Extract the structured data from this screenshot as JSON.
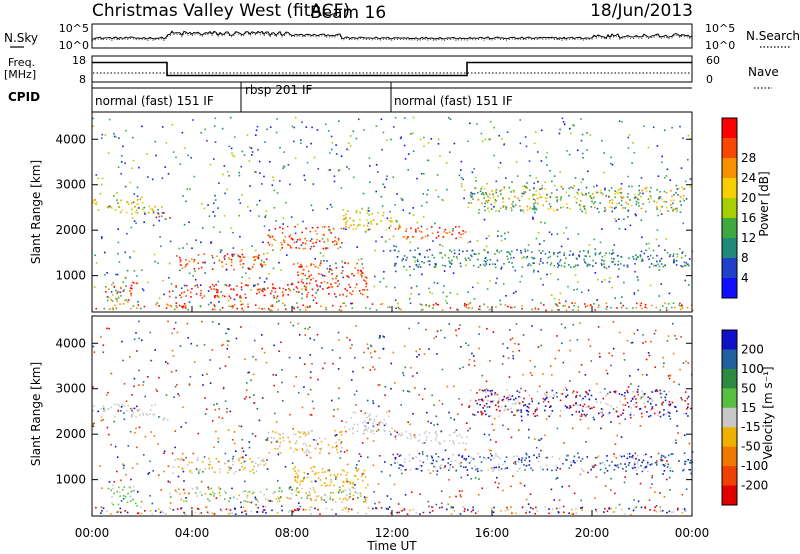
{
  "header": {
    "title": "Christmas Valley West (fitACF)",
    "beam": "Beam 16",
    "date": "18/Jun/2013"
  },
  "chart_data": [
    {
      "type": "line",
      "name": "noise-panel",
      "left_label": "N.Sky",
      "right_label": "N.Search",
      "left_ticks": [
        "10^5",
        "10^0"
      ],
      "right_ticks": [
        "10^5",
        "10^0"
      ],
      "series": [
        {
          "name": "N.Sky",
          "style": "solid"
        },
        {
          "name": "N.Search",
          "style": "dotted"
        }
      ]
    },
    {
      "type": "line",
      "name": "frequency-panel",
      "left_label_line1": "Freq.",
      "left_label_line2": "[MHz]",
      "right_label": "Nave",
      "left_ticks": [
        "18",
        "8"
      ],
      "right_ticks": [
        "60",
        "0"
      ],
      "freq_steps_hours": [
        [
          0,
          3,
          15.5
        ],
        [
          3,
          15,
          10.5
        ],
        [
          15,
          24,
          15.5
        ]
      ],
      "ylim": [
        8,
        18
      ]
    },
    {
      "type": "table",
      "name": "cpid-panel",
      "label": "CPID",
      "segments": [
        {
          "label": "normal (fast) 151 IF",
          "start": 0,
          "end": 6
        },
        {
          "label": "rbsp 201 IF",
          "start": 6,
          "end": 12
        },
        {
          "label": "normal (fast) 151 IF",
          "start": 12,
          "end": 24
        }
      ]
    },
    {
      "type": "heatmap",
      "name": "power",
      "ylabel": "Slant Range [km]",
      "yticks": [
        1000,
        2000,
        3000,
        4000
      ],
      "ylim": [
        200,
        4600
      ],
      "colorbar_label": "Power [dB]",
      "colorbar_ticks": [
        4,
        8,
        12,
        16,
        20,
        24,
        28
      ],
      "colorbar_colors": [
        "#1010ff",
        "#2040c8",
        "#208a7a",
        "#40a840",
        "#a8d000",
        "#f8d000",
        "#f89000",
        "#f84800",
        "#ff0000"
      ],
      "clim": [
        0,
        32
      ]
    },
    {
      "type": "heatmap",
      "name": "velocity",
      "ylabel": "Slant Range [km]",
      "yticks": [
        1000,
        2000,
        3000,
        4000
      ],
      "ylim": [
        200,
        4600
      ],
      "colorbar_label": "Velocity [m s⁻¹]",
      "colorbar_ticks": [
        "200",
        "100",
        "50",
        "15",
        "-15",
        "-50",
        "-100",
        "-200"
      ],
      "colorbar_colors": [
        "#1010c8",
        "#2060a0",
        "#2e8a40",
        "#58c040",
        "#c8c8c8",
        "#f0b000",
        "#f07800",
        "#f04000",
        "#e00000"
      ],
      "xlabel": "Time UT",
      "xticks": [
        "00:00",
        "04:00",
        "08:00",
        "12:00",
        "16:00",
        "20:00",
        "00:00"
      ],
      "xlim_hours": [
        0,
        24
      ]
    }
  ]
}
